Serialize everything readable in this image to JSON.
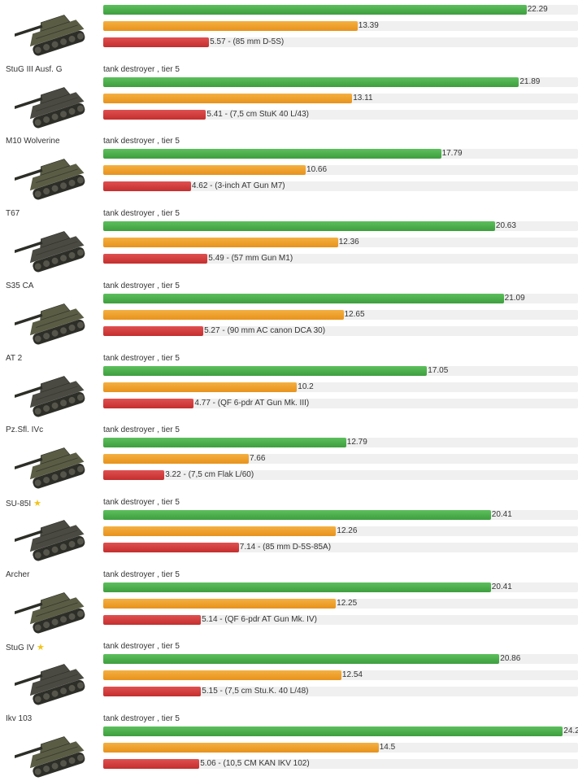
{
  "colors": {
    "high": "#4caf50",
    "mid": "#f0a030",
    "low": "#d03838"
  },
  "chart_data": {
    "type": "bar",
    "orientation": "horizontal",
    "xlim": [
      0,
      25
    ],
    "labels": [
      "",
      "",
      ""
    ],
    "rows": [
      {
        "name": "",
        "class": "",
        "values": [
          22.29,
          13.39,
          5.57
        ],
        "label_high": "22.29",
        "label_mid": "13.39",
        "label_low": "5.57 - (85 mm D-5S)",
        "star": false,
        "icon": "tank-destroyer-icon"
      },
      {
        "name": "StuG III Ausf. G",
        "class": "tank destroyer , tier 5",
        "values": [
          21.89,
          13.11,
          5.41
        ],
        "label_high": "21.89",
        "label_mid": "13.11",
        "label_low": "5.41 - (7,5 cm StuK 40 L/43)",
        "star": false,
        "icon": "tank-destroyer-icon"
      },
      {
        "name": "M10 Wolverine",
        "class": "tank destroyer , tier 5",
        "values": [
          17.79,
          10.66,
          4.62
        ],
        "label_high": "17.79",
        "label_mid": "10.66",
        "label_low": "4.62 - (3-inch AT Gun M7)",
        "star": false,
        "icon": "tank-destroyer-icon"
      },
      {
        "name": "T67",
        "class": "tank destroyer , tier 5",
        "values": [
          20.63,
          12.36,
          5.49
        ],
        "label_high": "20.63",
        "label_mid": "12.36",
        "label_low": "5.49 - (57 mm Gun M1)",
        "star": false,
        "icon": "tank-destroyer-icon"
      },
      {
        "name": "S35 CA",
        "class": "tank destroyer , tier 5",
        "values": [
          21.09,
          12.65,
          5.27
        ],
        "label_high": "21.09",
        "label_mid": "12.65",
        "label_low": "5.27 - (90 mm AC canon DCA 30)",
        "star": false,
        "icon": "tank-destroyer-icon"
      },
      {
        "name": "AT 2",
        "class": "tank destroyer , tier 5",
        "values": [
          17.05,
          10.2,
          4.77
        ],
        "label_high": "17.05",
        "label_mid": "10.2",
        "label_low": "4.77 - (QF 6-pdr AT Gun Mk. III)",
        "star": false,
        "icon": "tank-destroyer-icon"
      },
      {
        "name": "Pz.Sfl. IVc",
        "class": "tank destroyer , tier 5",
        "values": [
          12.79,
          7.66,
          3.22
        ],
        "label_high": "12.79",
        "label_mid": "7.66",
        "label_low": "3.22 - (7,5 cm Flak L/60)",
        "star": false,
        "icon": "tank-destroyer-icon"
      },
      {
        "name": "SU-85I",
        "class": "tank destroyer , tier 5",
        "values": [
          20.41,
          12.26,
          7.14
        ],
        "label_high": "20.41",
        "label_mid": "12.26",
        "label_low": "7.14 - (85 mm D-5S-85A)",
        "star": true,
        "icon": "tank-destroyer-icon"
      },
      {
        "name": "Archer",
        "class": "tank destroyer , tier 5",
        "values": [
          20.41,
          12.25,
          5.14
        ],
        "label_high": "20.41",
        "label_mid": "12.25",
        "label_low": "5.14 - (QF 6-pdr AT Gun Mk. IV)",
        "star": false,
        "icon": "tank-destroyer-icon"
      },
      {
        "name": "StuG IV",
        "class": "tank destroyer , tier 5",
        "values": [
          20.86,
          12.54,
          5.15
        ],
        "label_high": "20.86",
        "label_mid": "12.54",
        "label_low": "5.15 - (7,5 cm Stu.K. 40 L/48)",
        "star": true,
        "icon": "tank-destroyer-icon"
      },
      {
        "name": "Ikv 103",
        "class": "tank destroyer , tier 5",
        "values": [
          24.2,
          14.5,
          5.06
        ],
        "label_high": "24.2",
        "label_mid": "14.5",
        "label_low": "5.06 - (10,5 CM KAN IKV 102)",
        "star": false,
        "icon": "tank-destroyer-icon"
      }
    ]
  }
}
